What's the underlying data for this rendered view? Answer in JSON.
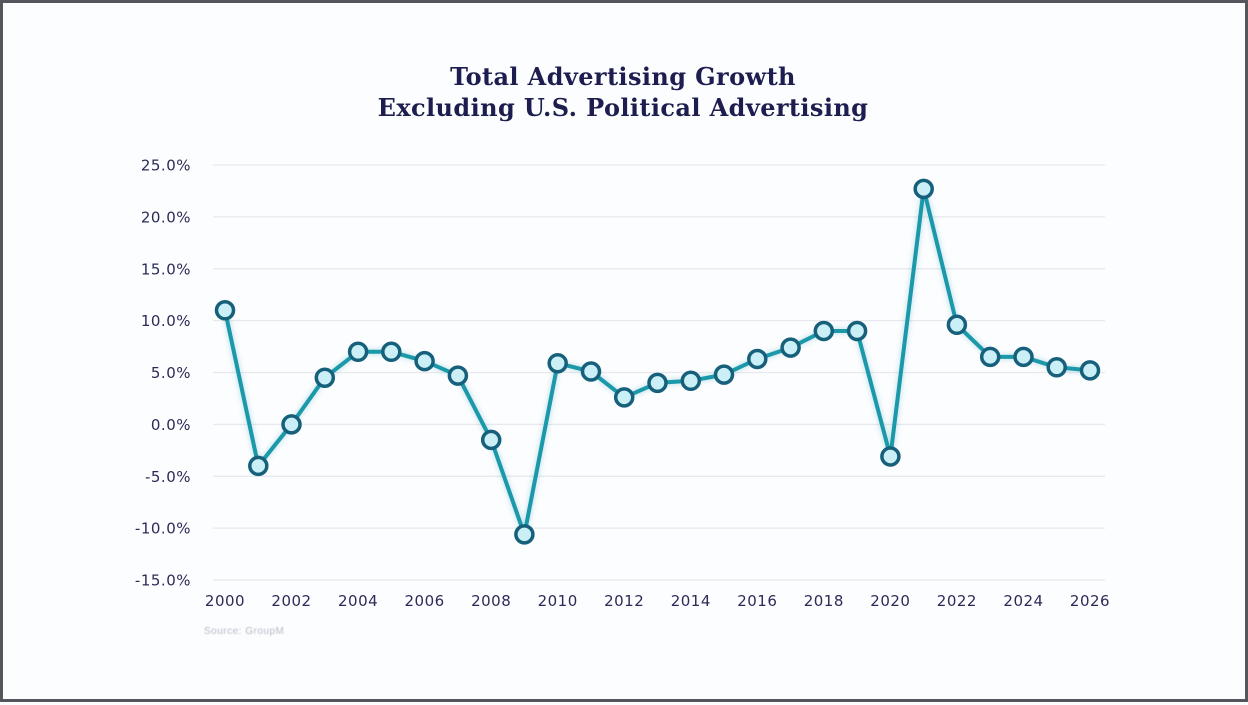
{
  "page": {
    "source_note": "Source: GroupM"
  },
  "chart_data": {
    "type": "line",
    "title": "Total Advertising Growth",
    "subtitle": "Excluding U.S. Political Advertising",
    "x": [
      2000,
      2001,
      2002,
      2003,
      2004,
      2005,
      2006,
      2007,
      2008,
      2009,
      2010,
      2011,
      2012,
      2013,
      2014,
      2015,
      2016,
      2017,
      2018,
      2019,
      2020,
      2021,
      2022,
      2023,
      2024,
      2025,
      2026
    ],
    "series": [
      {
        "name": "Total advertising growth excluding U.S. political advertising (%)",
        "values": [
          11.0,
          -4.0,
          0.0,
          4.5,
          7.0,
          7.0,
          6.1,
          4.7,
          -1.5,
          -10.6,
          5.9,
          5.1,
          2.6,
          4.0,
          4.2,
          4.8,
          6.3,
          7.4,
          9.0,
          9.0,
          -3.1,
          22.7,
          9.6,
          6.5,
          6.5,
          5.5,
          5.2
        ]
      }
    ],
    "ylim": [
      -15,
      25
    ],
    "yticks": [
      25,
      20,
      15,
      10,
      5,
      0,
      -5,
      -10,
      -15
    ],
    "ytick_suffix": "%",
    "xticks": [
      2000,
      2002,
      2004,
      2006,
      2008,
      2010,
      2012,
      2014,
      2016,
      2018,
      2020,
      2022,
      2024,
      2026
    ],
    "grid": "horizontal-only",
    "legend_position": "none",
    "colors": {
      "line": "#1b98a9",
      "marker_fill": "#cbeff7",
      "marker_stroke": "#16607c",
      "grid": "#e7e9ee",
      "title_text": "#1d1d4f",
      "axis_text": "#2b2b58",
      "background": "#fcfdff",
      "frame_border": "#55555d"
    }
  }
}
